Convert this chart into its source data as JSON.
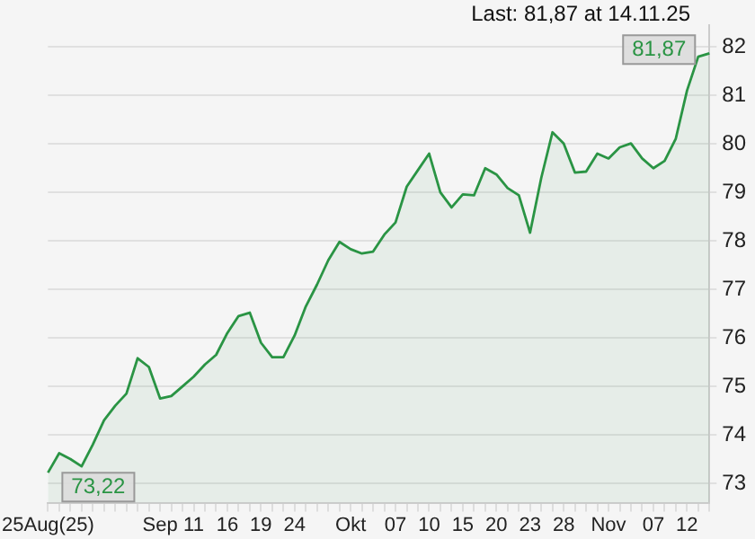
{
  "chart_data": {
    "type": "area",
    "annotations": [
      "Last: 81,87 at 14.11.25"
    ],
    "categories": [
      "25Aug(25)",
      null,
      null,
      null,
      null,
      null,
      null,
      null,
      null,
      null,
      "Sep",
      null,
      null,
      "11",
      null,
      null,
      "16",
      null,
      null,
      "19",
      null,
      null,
      "24",
      null,
      null,
      null,
      null,
      "Okt",
      null,
      null,
      null,
      "07",
      null,
      null,
      "10",
      null,
      null,
      "15",
      null,
      null,
      "20",
      null,
      null,
      "23",
      null,
      null,
      "28",
      null,
      null,
      null,
      "Nov",
      null,
      null,
      null,
      "07",
      null,
      null,
      "12",
      null,
      null
    ],
    "series": [
      {
        "color": "#2a9444",
        "values": [
          73.22,
          73.62,
          73.5,
          73.35,
          73.8,
          74.3,
          74.6,
          74.85,
          75.58,
          75.4,
          74.75,
          74.8,
          75.0,
          75.2,
          75.45,
          75.65,
          76.1,
          76.45,
          76.52,
          75.9,
          75.6,
          75.6,
          76.05,
          76.65,
          77.1,
          77.6,
          77.98,
          77.83,
          77.74,
          77.78,
          78.13,
          78.38,
          79.12,
          79.46,
          79.8,
          79.0,
          78.69,
          78.96,
          78.94,
          79.5,
          79.37,
          79.09,
          78.94,
          78.17,
          79.3,
          80.24,
          80.01,
          79.41,
          79.43,
          79.8,
          79.7,
          79.93,
          80.01,
          79.7,
          79.5,
          79.65,
          80.11,
          81.1,
          81.8,
          81.87
        ],
        "value_labels": [
          "73,22",
          null,
          null,
          null,
          null,
          null,
          null,
          null,
          null,
          null,
          null,
          null,
          null,
          null,
          null,
          null,
          null,
          null,
          null,
          null,
          null,
          null,
          null,
          null,
          null,
          null,
          null,
          null,
          null,
          null,
          null,
          null,
          null,
          null,
          null,
          null,
          null,
          null,
          null,
          null,
          null,
          null,
          null,
          null,
          null,
          null,
          null,
          null,
          null,
          null,
          null,
          null,
          null,
          null,
          null,
          null,
          null,
          null,
          null,
          "81,87"
        ]
      }
    ],
    "ylim": [
      72.6,
      82.45
    ],
    "yticks": [
      73,
      74,
      75,
      76,
      77,
      78,
      79,
      80,
      81,
      82
    ],
    "grid": "y",
    "legend": false,
    "marker": "none",
    "line_style": "solid"
  }
}
